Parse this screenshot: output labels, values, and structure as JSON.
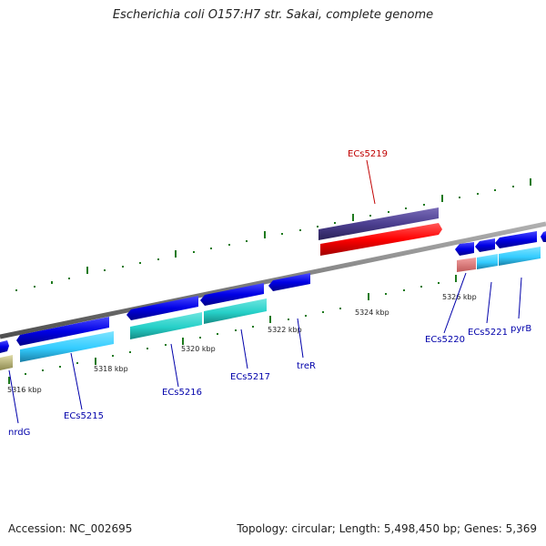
{
  "header": {
    "title": "Escherichia coli O157:H7 str. Sakai, complete genome"
  },
  "footer": {
    "accession": "Accession: NC_002695",
    "summary": "Topology: circular; Length: 5,498,450 bp; Genes: 5,369"
  },
  "ticks": [
    "5316 kbp",
    "5318 kbp",
    "5320 kbp",
    "5322 kbp",
    "5324 kbp",
    "5326 kbp"
  ],
  "genes": {
    "nrdG": "nrdG",
    "ECs5215": "ECs5215",
    "ECs5216": "ECs5216",
    "ECs5217": "ECs5217",
    "treR": "treR",
    "ECs5219": "ECs5219",
    "ECs5220": "ECs5220",
    "ECs5221": "ECs5221",
    "pyrB": "pyrB"
  },
  "colors": {
    "backbone": "#808080",
    "forward_gene": "#0000e6",
    "forward_cds": "#33ccff",
    "reverse_gene_cds": "#26d0c8",
    "highlight_gene": "#4c3f90",
    "highlight_cds": "#ff0000",
    "pseudo_cds": "#e87878",
    "olive_cds": "#c8c48a",
    "tick_mark": "#1e7a1e",
    "label_blue": "#0000aa",
    "label_red": "#c00000"
  }
}
